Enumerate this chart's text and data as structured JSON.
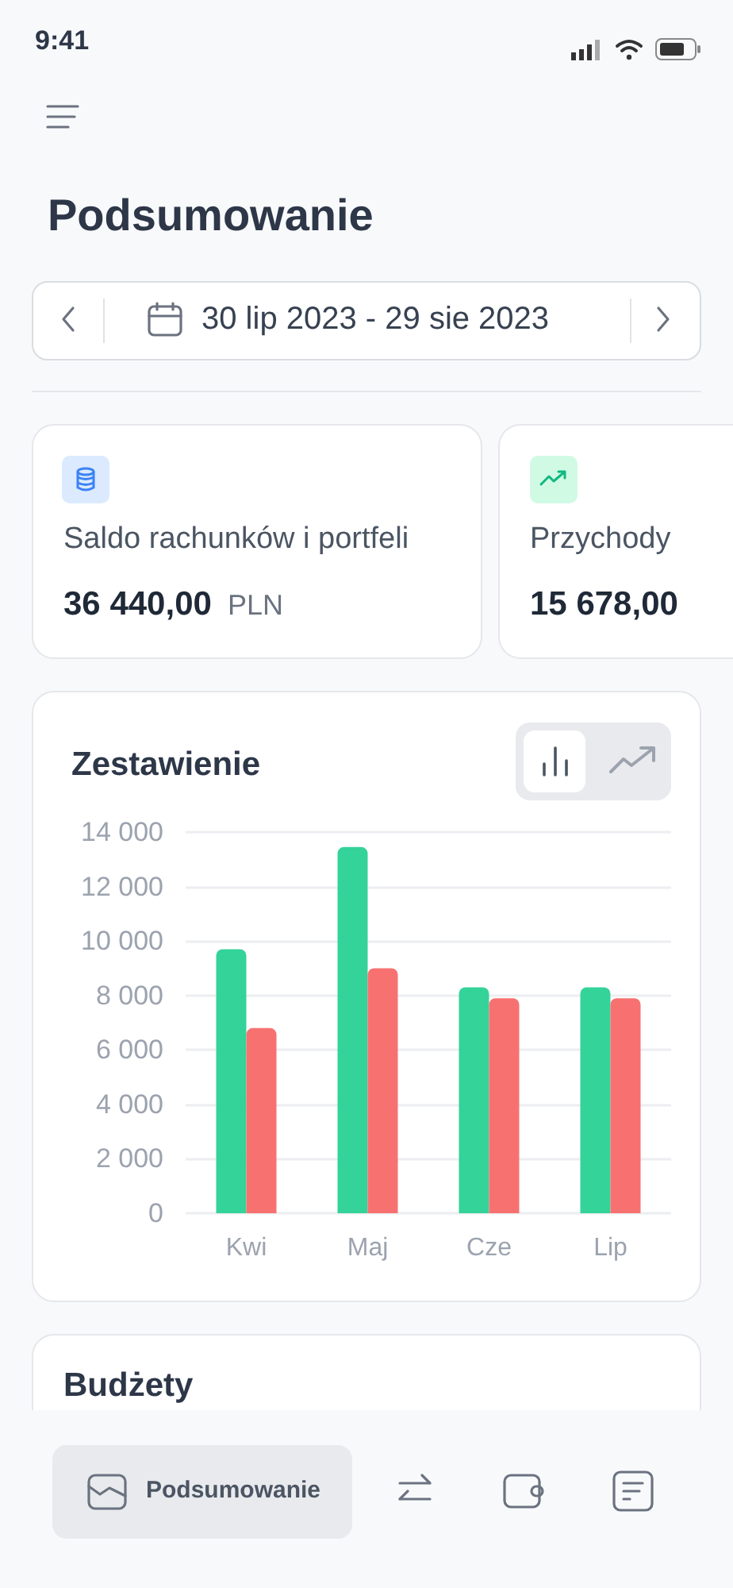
{
  "chart_data": [
    {
      "type": "other",
      "title": "Podsumowanie",
      "annotations": [
        "9:41",
        "30 lip 2023 - 29 sie 2023",
        "Saldo rachunków i portfeli",
        "36 440,00",
        "PLN",
        "Przychody",
        "15 678,00",
        "Budżety",
        "Podsumowanie"
      ]
    },
    {
      "type": "bar",
      "title": "Zestawienie",
      "categories": [
        "Kwi",
        "Maj",
        "Cze",
        "Lip"
      ],
      "series": [
        {
          "color": "#34d399",
          "values": [
            9700,
            13450,
            8300,
            8300
          ]
        },
        {
          "color": "#f87171",
          "values": [
            6800,
            9000,
            7900,
            7900
          ]
        }
      ],
      "ylim": [
        0,
        14000
      ],
      "yticks": [
        0,
        {
          "value": 2000,
          "label": "2 000"
        },
        {
          "value": 4000,
          "label": "4 000"
        },
        {
          "value": 6000,
          "label": "6 000"
        },
        {
          "value": 8000,
          "label": "8 000"
        },
        {
          "value": 10000,
          "label": "10 000"
        },
        {
          "value": 12000,
          "label": "12 000"
        },
        {
          "value": 14000,
          "label": "14 000"
        }
      ],
      "grid": "y"
    }
  ]
}
